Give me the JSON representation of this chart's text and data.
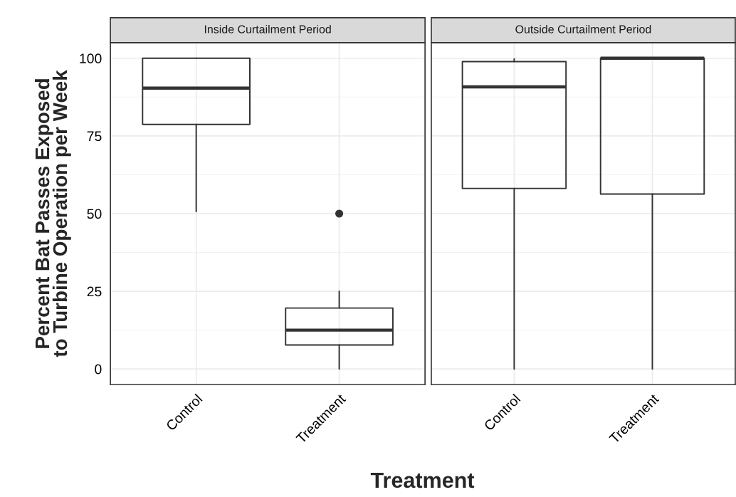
{
  "chart_data": [
    {
      "type": "box",
      "title": "Inside Curtailment Period",
      "ylabel": "Percent Bat Passes Exposed\nto Turbine Operation per Week",
      "xlabel": "Treatment",
      "categories": [
        "Control",
        "Treatment"
      ],
      "boxes": [
        {
          "low": 50.6,
          "q1": 78.7,
          "median": 90.4,
          "q3": 100,
          "high": 100
        },
        {
          "low": 0,
          "q1": 7.7,
          "median": 12.5,
          "q3": 19.6,
          "high": 25,
          "outliers": [
            50
          ]
        }
      ],
      "ylim": [
        -5,
        105
      ],
      "yticks": [
        0,
        25,
        50,
        75,
        100
      ],
      "grid": true
    },
    {
      "type": "box",
      "title": "Outside Curtailment Period",
      "categories": [
        "Control",
        "Treatment"
      ],
      "boxes": [
        {
          "low": 0,
          "q1": 58.1,
          "median": 90.8,
          "q3": 98.9,
          "high": 99.8
        },
        {
          "low": 0,
          "q1": 56.3,
          "median": 100,
          "q3": 100,
          "high": 100
        }
      ],
      "ylim": [
        -5,
        105
      ],
      "yticks": [
        0,
        25,
        50,
        75,
        100
      ],
      "grid": true,
      "tick_labels": "x"
    }
  ]
}
